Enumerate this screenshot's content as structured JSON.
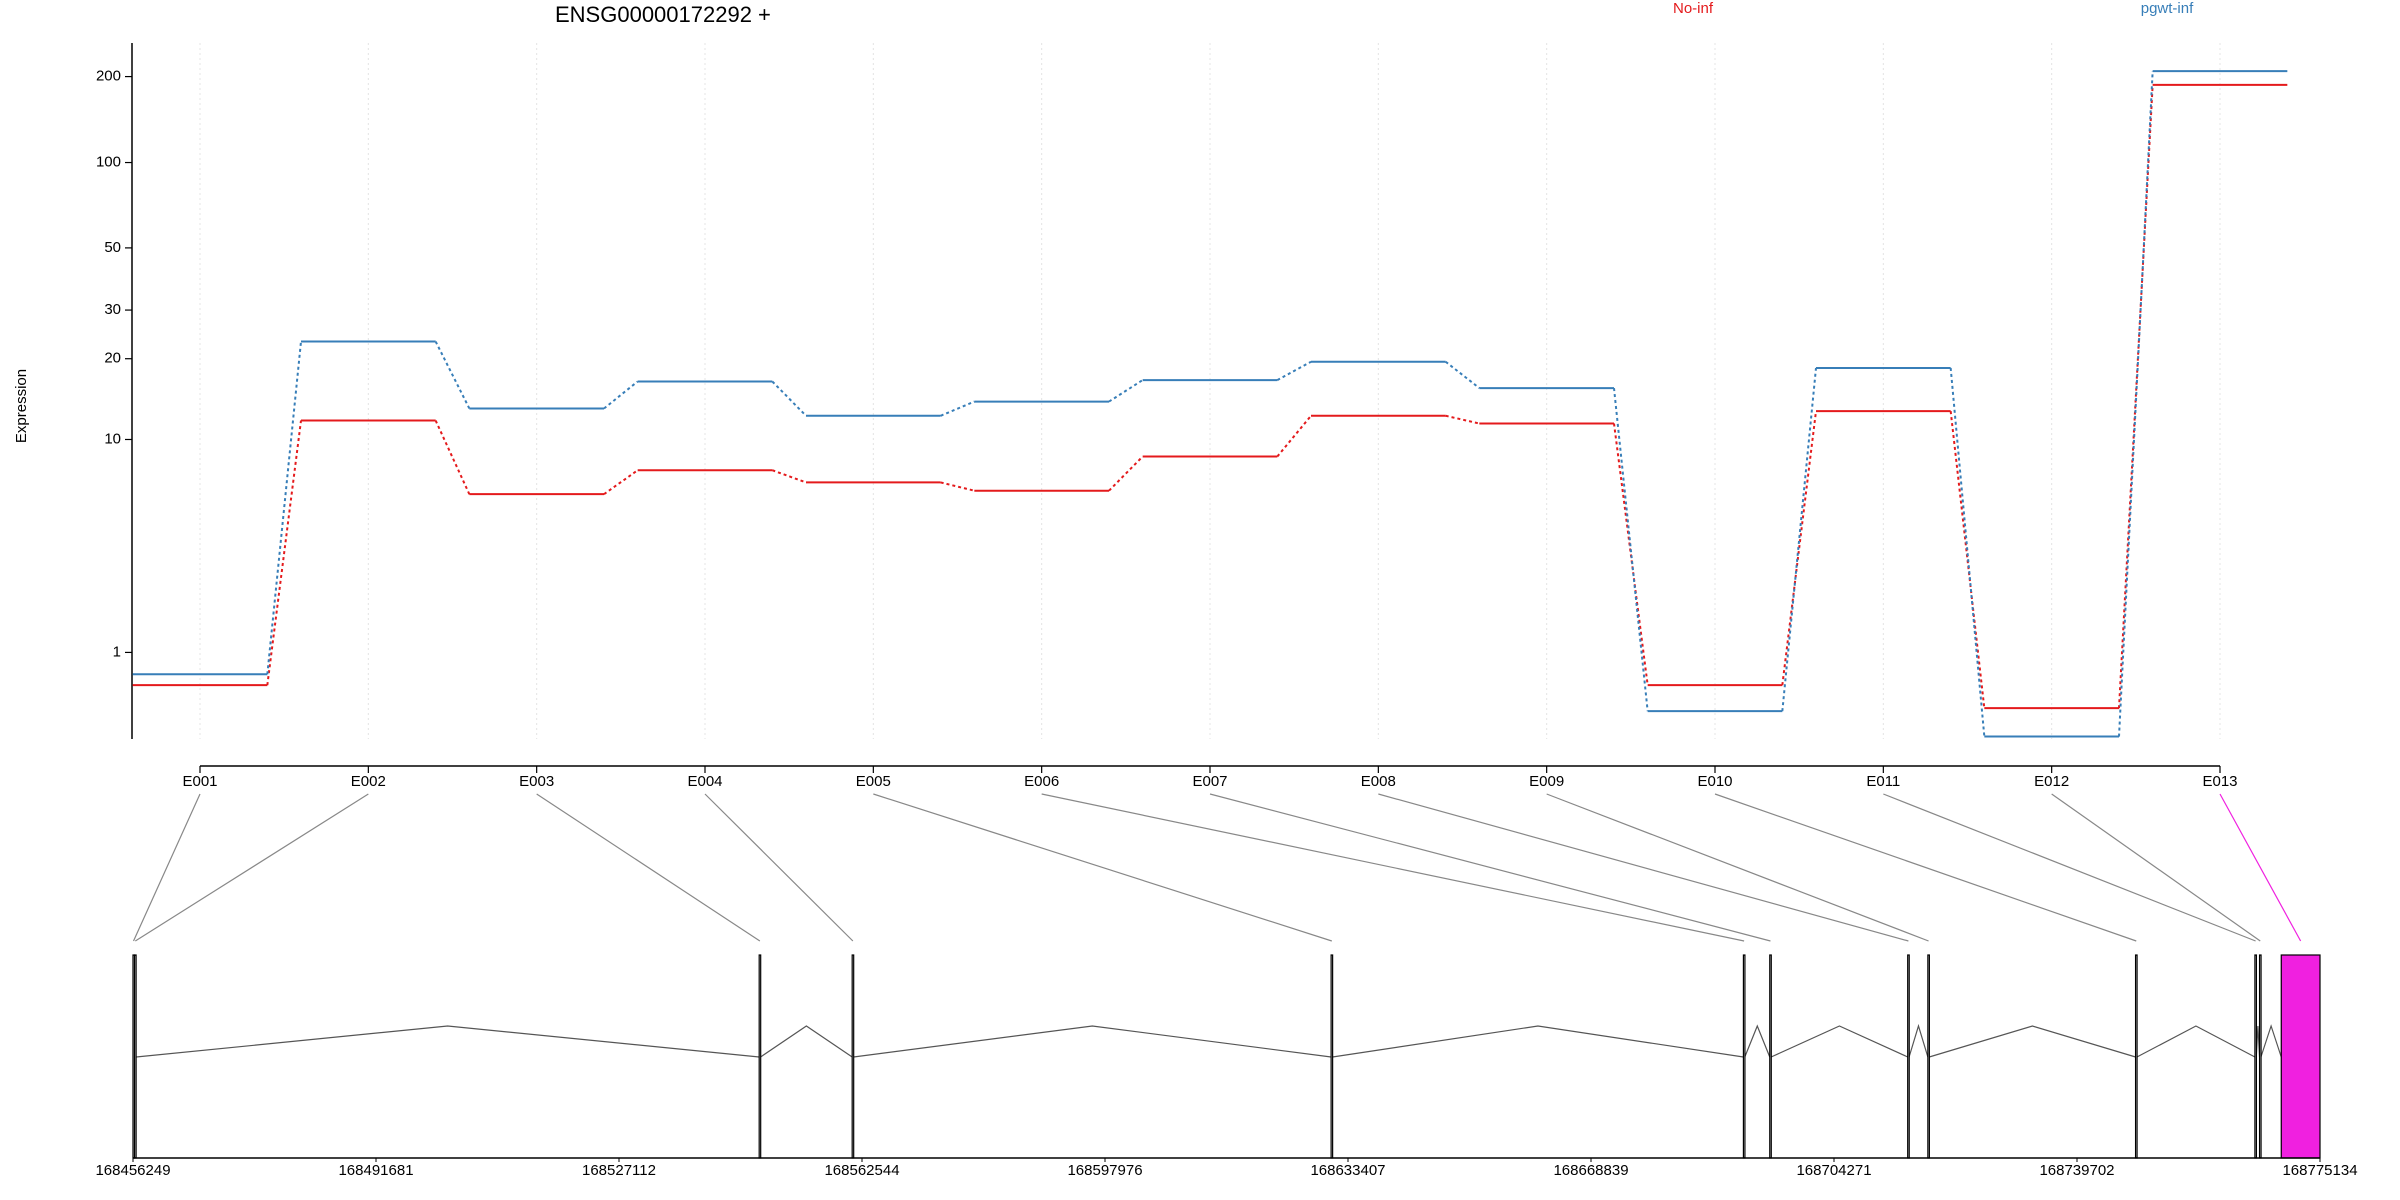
{
  "chart_data": {
    "type": "line",
    "title": "ENSG00000172292 +",
    "y_label": "Expression",
    "y_scale": "log10(x+1)",
    "grid": true,
    "categories": [
      "E001",
      "E002",
      "E003",
      "E004",
      "E005",
      "E006",
      "E007",
      "E008",
      "E009",
      "E010",
      "E011",
      "E012",
      "E013"
    ],
    "series": [
      {
        "name": "No-inf",
        "color": "#e41a1c",
        "values": [
          0.54,
          11.8,
          6.1,
          7.6,
          6.8,
          6.3,
          8.6,
          12.3,
          11.5,
          0.54,
          12.8,
          0.28,
          187
        ]
      },
      {
        "name": "pgwt-inf",
        "color": "#377eb8",
        "values": [
          0.68,
          23.1,
          13.1,
          16.5,
          12.3,
          13.9,
          16.7,
          19.5,
          15.6,
          0.25,
          18.5,
          0.02,
          209
        ]
      }
    ],
    "ylim": [
      0,
      262
    ],
    "yticks": [
      1,
      10,
      20,
      30,
      50,
      100,
      200
    ],
    "gene_model": {
      "xlim": [
        168456249,
        168775134
      ],
      "xticks": [
        168456249,
        168491681,
        168527112,
        168562544,
        168597976,
        168633407,
        168668839,
        168704271,
        168739702,
        168775134
      ],
      "exons": [
        {
          "start": 168456249,
          "end": 168456400,
          "color": "#ffffff"
        },
        {
          "start": 168456475,
          "end": 168456700,
          "color": "#ffffff"
        },
        {
          "start": 168547553,
          "end": 168547753,
          "color": "#ffffff"
        },
        {
          "start": 168561113,
          "end": 168561313,
          "color": "#ffffff"
        },
        {
          "start": 168630947,
          "end": 168631147,
          "color": "#ffffff"
        },
        {
          "start": 168691063,
          "end": 168691263,
          "color": "#ffffff"
        },
        {
          "start": 168694905,
          "end": 168695105,
          "color": "#ffffff"
        },
        {
          "start": 168715019,
          "end": 168715219,
          "color": "#ffffff"
        },
        {
          "start": 168717957,
          "end": 168718157,
          "color": "#ffffff"
        },
        {
          "start": 168748241,
          "end": 168748441,
          "color": "#ffffff"
        },
        {
          "start": 168765643,
          "end": 168765843,
          "color": "#ffffff"
        },
        {
          "start": 168766321,
          "end": 168766521,
          "color": "#ffffff"
        },
        {
          "start": 168769485,
          "end": 168775134,
          "color": "#f020e0"
        }
      ]
    }
  }
}
